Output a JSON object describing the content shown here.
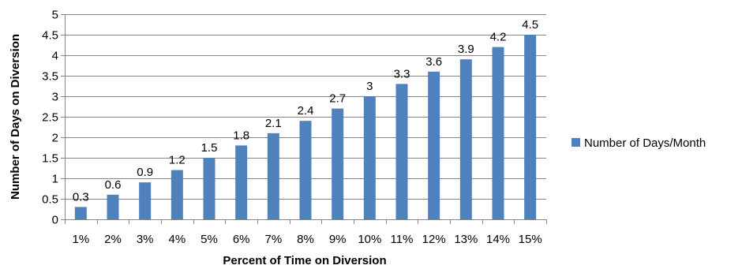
{
  "chart_data": {
    "type": "bar",
    "categories": [
      "1%",
      "2%",
      "3%",
      "4%",
      "5%",
      "6%",
      "7%",
      "8%",
      "9%",
      "10%",
      "11%",
      "12%",
      "13%",
      "14%",
      "15%"
    ],
    "series": [
      {
        "name": "Number of Days/Month",
        "values": [
          0.3,
          0.6,
          0.9,
          1.2,
          1.5,
          1.8,
          2.1,
          2.4,
          2.7,
          3,
          3.3,
          3.6,
          3.9,
          4.2,
          4.5
        ],
        "color": "#4F81BD"
      }
    ],
    "data_labels": [
      "0.3",
      "0.6",
      "0.9",
      "1.2",
      "1.5",
      "1.8",
      "2.1",
      "2.4",
      "2.7",
      "3",
      "3.3",
      "3.6",
      "3.9",
      "4.2",
      "4.5"
    ],
    "xlabel": "Percent of Time on Diversion",
    "ylabel": "Number of Days on Diversion",
    "ylim": [
      0,
      5
    ],
    "yticks": [
      "0",
      "0.5",
      "1",
      "1.5",
      "2",
      "2.5",
      "3",
      "3.5",
      "4",
      "4.5",
      "5"
    ],
    "grid": true,
    "legend_position": "right"
  }
}
